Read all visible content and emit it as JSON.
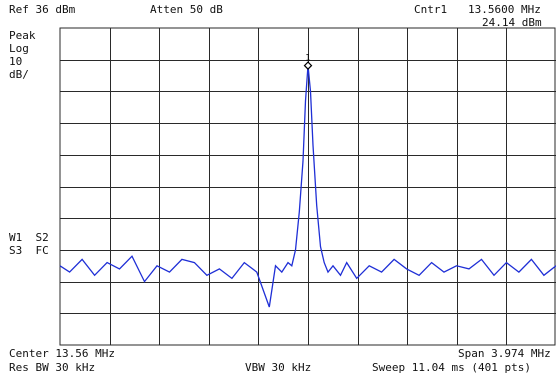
{
  "header": {
    "ref_level": "Ref 36 dBm",
    "attenuation": "Atten 50 dB",
    "marker_label": "Cntr1",
    "marker_freq": "13.5600 MHz",
    "marker_amp": "24.14 dBm"
  },
  "left_panel": {
    "detector": "Peak",
    "scale_type": "Log",
    "scale_value": "10",
    "scale_unit": "dB/",
    "trace_info_1": "W1  S2",
    "trace_info_2": "S3  FC"
  },
  "footer": {
    "center": "Center 13.56 MHz",
    "span": "Span 3.974 MHz",
    "rbw": "Res BW 30 kHz",
    "vbw": "VBW 30 kHz",
    "sweep": "Sweep 11.04 ms (401 pts)"
  },
  "marker": {
    "number": "1"
  },
  "colors": {
    "trace": "#1f2fd6",
    "grid": "#2a2a2a"
  },
  "chart_data": {
    "type": "line",
    "x_unit": "MHz",
    "y_unit": "dBm",
    "xlim": [
      11.573,
      15.547
    ],
    "ylim": [
      -64,
      36
    ],
    "y_per_division": 10,
    "grid": true,
    "marker": {
      "x": 13.56,
      "y": 24.14
    },
    "series": [
      {
        "x": [
          11.573,
          11.65,
          11.75,
          11.85,
          11.95,
          12.05,
          12.15,
          12.25,
          12.35,
          12.45,
          12.55,
          12.65,
          12.75,
          12.85,
          12.95,
          13.05,
          13.15,
          13.25,
          13.3,
          13.35,
          13.4,
          13.43,
          13.46,
          13.49,
          13.52,
          13.54,
          13.56,
          13.58,
          13.6,
          13.63,
          13.66,
          13.69,
          13.72,
          13.76,
          13.82,
          13.87,
          13.95,
          14.05,
          14.15,
          14.25,
          14.35,
          14.45,
          14.55,
          14.65,
          14.75,
          14.85,
          14.95,
          15.05,
          15.15,
          15.25,
          15.35,
          15.45,
          15.547
        ],
        "y": [
          -39,
          -41,
          -37,
          -42,
          -38,
          -40,
          -36,
          -44,
          -39,
          -41,
          -37,
          -38,
          -42,
          -40,
          -43,
          -38,
          -41,
          -52,
          -39,
          -41,
          -38,
          -39,
          -34,
          -22,
          -6,
          13,
          24.14,
          16,
          -1,
          -20,
          -33,
          -38,
          -41,
          -39,
          -42,
          -38,
          -43,
          -39,
          -41,
          -37,
          -40,
          -42,
          -38,
          -41,
          -39,
          -40,
          -37,
          -42,
          -38,
          -41,
          -37,
          -42,
          -39
        ]
      }
    ]
  }
}
